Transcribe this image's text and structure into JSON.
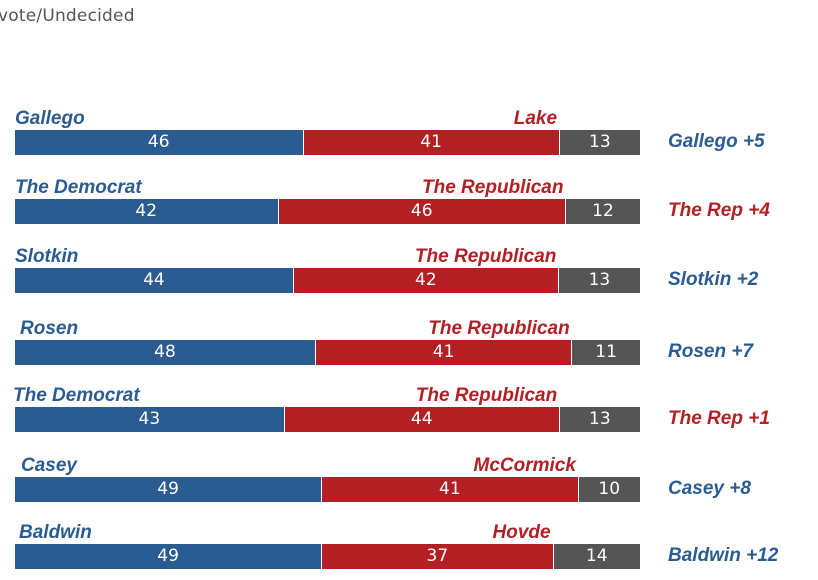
{
  "subtitle": "vote/Undecided",
  "colors": {
    "democrat": "#2b5c91",
    "republican": "#b41f24",
    "undecided": "#555555"
  },
  "chart_data": {
    "type": "bar",
    "orientation": "horizontal",
    "stacked": true,
    "series_order": [
      "democrat",
      "republican",
      "undecided"
    ],
    "rows": [
      {
        "dem_label": "Gallego",
        "rep_label": "Lake",
        "values": [
          46,
          41,
          13
        ],
        "margin": "Gallego +5",
        "leader": "democrat"
      },
      {
        "dem_label": "The Democrat",
        "rep_label": "The Republican",
        "values": [
          42,
          46,
          12
        ],
        "margin": "The Rep +4",
        "leader": "republican"
      },
      {
        "dem_label": "Slotkin",
        "rep_label": "The Republican",
        "values": [
          44,
          42,
          13
        ],
        "margin": "Slotkin +2",
        "leader": "democrat"
      },
      {
        "dem_label": "Rosen",
        "rep_label": "The Republican",
        "values": [
          48,
          41,
          11
        ],
        "margin": "Rosen +7",
        "leader": "democrat"
      },
      {
        "dem_label": "The Democrat",
        "rep_label": "The Republican",
        "values": [
          43,
          44,
          13
        ],
        "margin": "The Rep +1",
        "leader": "republican"
      },
      {
        "dem_label": "Casey",
        "rep_label": "McCormick",
        "values": [
          49,
          41,
          10
        ],
        "margin": "Casey +8",
        "leader": "democrat"
      },
      {
        "dem_label": "Baldwin",
        "rep_label": "Hovde",
        "values": [
          49,
          37,
          14
        ],
        "margin": "Baldwin +12",
        "leader": "democrat"
      }
    ]
  }
}
